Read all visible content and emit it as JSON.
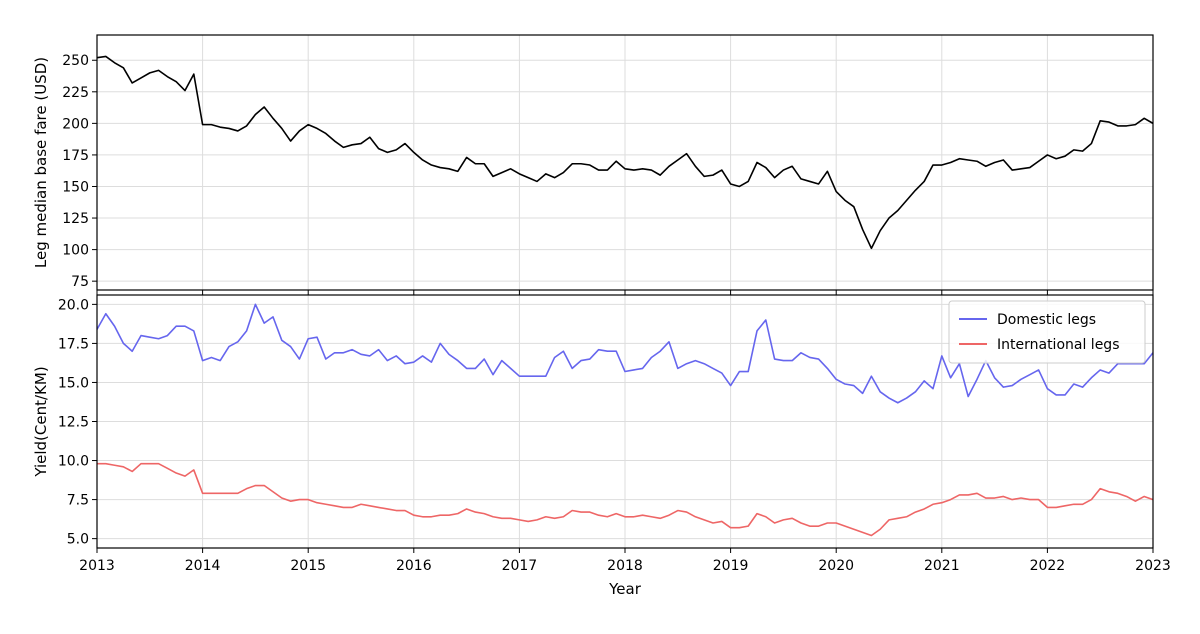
{
  "chart_data": [
    {
      "type": "line",
      "ylabel": "Leg median base fare (USD)",
      "xlim": [
        2013,
        2023
      ],
      "ylim": [
        68,
        270
      ],
      "yticks": [
        75,
        100,
        125,
        150,
        175,
        200,
        225,
        250
      ],
      "xticks": [
        2013,
        2014,
        2015,
        2016,
        2017,
        2018,
        2019,
        2020,
        2021,
        2022,
        2023
      ],
      "grid": true,
      "x_start": 2013.0,
      "x_step_months": 1,
      "series": [
        {
          "color": "#000000",
          "values": [
            252,
            253,
            248,
            244,
            232,
            236,
            240,
            242,
            237,
            233,
            226,
            239,
            199,
            199,
            197,
            196,
            194,
            198,
            207,
            213,
            204,
            196,
            186,
            194,
            199,
            196,
            192,
            186,
            181,
            183,
            184,
            189,
            180,
            177,
            179,
            184,
            177,
            171,
            167,
            165,
            164,
            162,
            173,
            168,
            168,
            158,
            161,
            164,
            160,
            157,
            154,
            160,
            157,
            161,
            168,
            168,
            167,
            163,
            163,
            170,
            164,
            163,
            164,
            163,
            159,
            166,
            171,
            176,
            166,
            158,
            159,
            163,
            152,
            150,
            154,
            169,
            165,
            157,
            163,
            166,
            156,
            154,
            152,
            162,
            146,
            139,
            134,
            116,
            101,
            115,
            125,
            131,
            139,
            147,
            154,
            167,
            167,
            169,
            172,
            171,
            170,
            166,
            169,
            171,
            163,
            164,
            165,
            170,
            175,
            172,
            174,
            179,
            178,
            184,
            202,
            201,
            198,
            198,
            199,
            204,
            200
          ]
        }
      ]
    },
    {
      "type": "line",
      "xlabel": "Year",
      "ylabel": "Yield(Cent/KM)",
      "xlim": [
        2013,
        2023
      ],
      "ylim": [
        4.4,
        20.6
      ],
      "yticks": [
        5.0,
        7.5,
        10.0,
        12.5,
        15.0,
        17.5,
        20.0
      ],
      "xticks": [
        2013,
        2014,
        2015,
        2016,
        2017,
        2018,
        2019,
        2020,
        2021,
        2022,
        2023
      ],
      "grid": true,
      "legend_position": "top-right",
      "x_start": 2013.0,
      "x_step_months": 1,
      "series": [
        {
          "name": "Domestic legs",
          "color": "#6666ee",
          "values": [
            18.4,
            19.4,
            18.6,
            17.5,
            17.0,
            18.0,
            17.9,
            17.8,
            18.0,
            18.6,
            18.6,
            18.3,
            16.4,
            16.6,
            16.4,
            17.3,
            17.6,
            18.3,
            20.0,
            18.8,
            19.2,
            17.7,
            17.3,
            16.5,
            17.8,
            17.9,
            16.5,
            16.9,
            16.9,
            17.1,
            16.8,
            16.7,
            17.1,
            16.4,
            16.7,
            16.2,
            16.3,
            16.7,
            16.3,
            17.5,
            16.8,
            16.4,
            15.9,
            15.9,
            16.5,
            15.5,
            16.4,
            15.9,
            15.4,
            15.4,
            15.4,
            15.4,
            16.6,
            17.0,
            15.9,
            16.4,
            16.5,
            17.1,
            17.0,
            17.0,
            15.7,
            15.8,
            15.9,
            16.6,
            17.0,
            17.6,
            15.9,
            16.2,
            16.4,
            16.2,
            15.9,
            15.6,
            14.8,
            15.7,
            15.7,
            18.3,
            19.0,
            16.5,
            16.4,
            16.4,
            16.9,
            16.6,
            16.5,
            15.9,
            15.2,
            14.9,
            14.8,
            14.3,
            15.4,
            14.4,
            14.0,
            13.7,
            14.0,
            14.4,
            15.1,
            14.6,
            16.7,
            15.3,
            16.2,
            14.1,
            15.2,
            16.4,
            15.3,
            14.7,
            14.8,
            15.2,
            15.5,
            15.8,
            14.6,
            14.2,
            14.2,
            14.9,
            14.7,
            15.3,
            15.8,
            15.6,
            16.2,
            16.2,
            16.2,
            16.2,
            16.9
          ]
        },
        {
          "name": "International legs",
          "color": "#ee6666",
          "values": [
            9.8,
            9.8,
            9.7,
            9.6,
            9.3,
            9.8,
            9.8,
            9.8,
            9.5,
            9.2,
            9.0,
            9.4,
            7.9,
            7.9,
            7.9,
            7.9,
            7.9,
            8.2,
            8.4,
            8.4,
            8.0,
            7.6,
            7.4,
            7.5,
            7.5,
            7.3,
            7.2,
            7.1,
            7.0,
            7.0,
            7.2,
            7.1,
            7.0,
            6.9,
            6.8,
            6.8,
            6.5,
            6.4,
            6.4,
            6.5,
            6.5,
            6.6,
            6.9,
            6.7,
            6.6,
            6.4,
            6.3,
            6.3,
            6.2,
            6.1,
            6.2,
            6.4,
            6.3,
            6.4,
            6.8,
            6.7,
            6.7,
            6.5,
            6.4,
            6.6,
            6.4,
            6.4,
            6.5,
            6.4,
            6.3,
            6.5,
            6.8,
            6.7,
            6.4,
            6.2,
            6.0,
            6.1,
            5.7,
            5.7,
            5.8,
            6.6,
            6.4,
            6.0,
            6.2,
            6.3,
            6.0,
            5.8,
            5.8,
            6.0,
            6.0,
            5.8,
            5.6,
            5.4,
            5.2,
            5.6,
            6.2,
            6.3,
            6.4,
            6.7,
            6.9,
            7.2,
            7.3,
            7.5,
            7.8,
            7.8,
            7.9,
            7.6,
            7.6,
            7.7,
            7.5,
            7.6,
            7.5,
            7.5,
            7.0,
            7.0,
            7.1,
            7.2,
            7.2,
            7.5,
            8.2,
            8.0,
            7.9,
            7.7,
            7.4,
            7.7,
            7.5
          ]
        }
      ]
    }
  ]
}
